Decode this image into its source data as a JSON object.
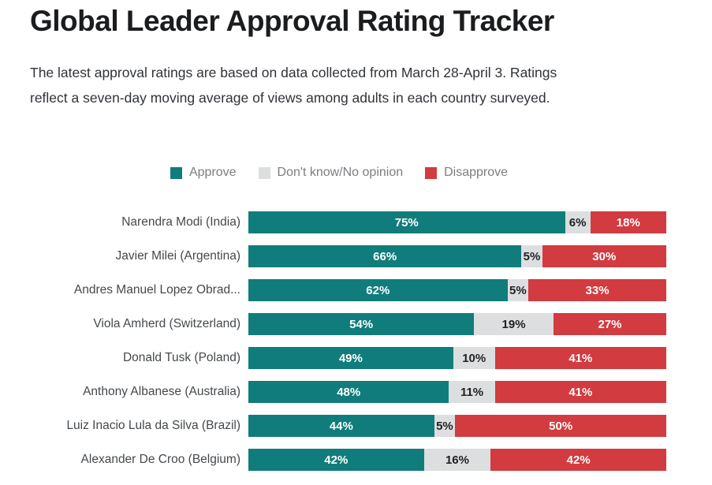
{
  "page": {
    "title": "Global Leader Approval Rating Tracker",
    "subtitle_lines": [
      "The latest approval ratings are based on data collected from March 28-April 3. Ratings",
      "reflect a seven-day moving average of views among adults in each country surveyed."
    ]
  },
  "legend": {
    "position": "top-center",
    "items": [
      {
        "label": "Approve",
        "color": "#107d7c"
      },
      {
        "label": "Don't know/No opinion",
        "color": "#dcdee0"
      },
      {
        "label": "Disapprove",
        "color": "#d23b3f"
      }
    ]
  },
  "chart_data": {
    "type": "bar",
    "orientation": "horizontal",
    "stacked": true,
    "normalized_to_full_width": true,
    "title": "Global Leader Approval Rating Tracker",
    "xlabel": "",
    "ylabel": "",
    "grid": false,
    "value_suffix": "%",
    "categories": [
      "Narendra Modi (India)",
      "Javier Milei (Argentina)",
      "Andres Manuel Lopez Obrad...",
      "Viola Amherd (Switzerland)",
      "Donald Tusk (Poland)",
      "Anthony Albanese (Australia)",
      "Luiz Inacio Lula da Silva (Brazil)",
      "Alexander De Croo (Belgium)"
    ],
    "series": [
      {
        "name": "Approve",
        "color": "#107d7c",
        "label_color": "#ffffff",
        "values": [
          75,
          66,
          62,
          54,
          49,
          48,
          44,
          42
        ]
      },
      {
        "name": "Don't know/No opinion",
        "color": "#dcdee0",
        "label_color": "#1f2124",
        "values": [
          6,
          5,
          5,
          19,
          10,
          11,
          5,
          16
        ]
      },
      {
        "name": "Disapprove",
        "color": "#d23b3f",
        "label_color": "#ffffff",
        "values": [
          18,
          30,
          33,
          27,
          41,
          41,
          50,
          42
        ]
      }
    ]
  }
}
